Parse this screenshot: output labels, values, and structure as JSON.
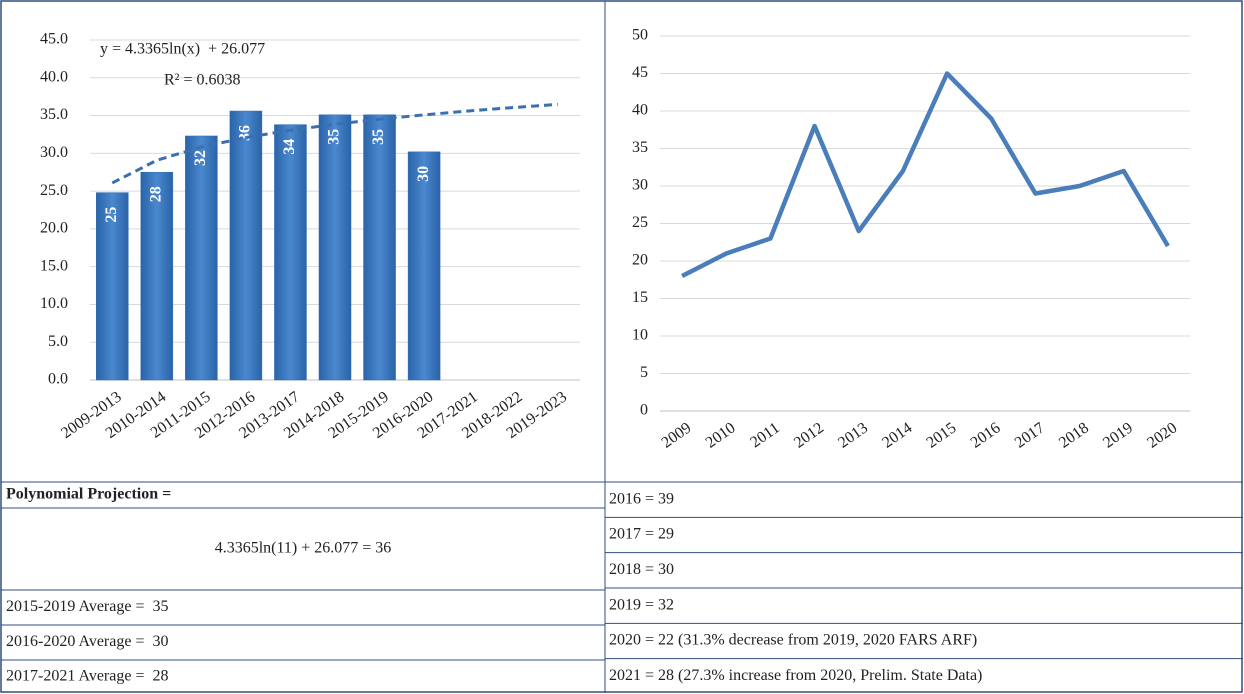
{
  "chart_data": [
    {
      "type": "bar",
      "annotations": [
        "y = 4.3365ln(x)  + 26.077",
        "R² = 0.6038"
      ],
      "categories": [
        "2009-2013",
        "2010-2014",
        "2011-2015",
        "2012-2016",
        "2013-2017",
        "2014-2018",
        "2015-2019",
        "2016-2020",
        "2017-2021",
        "2018-2022",
        "2019-2023"
      ],
      "values": [
        24.8,
        27.5,
        32.3,
        35.6,
        33.8,
        35.1,
        35.1,
        30.2,
        null,
        null,
        null
      ],
      "value_labels": [
        "25",
        "28",
        "32",
        "36",
        "34",
        "35",
        "35",
        "30",
        null,
        null,
        null
      ],
      "color": "#2f6db5",
      "trendline": {
        "values": [
          26.08,
          29.08,
          30.84,
          32.09,
          33.06,
          33.85,
          34.52,
          35.09,
          35.61,
          36.06,
          36.48
        ],
        "color": "#3a6fb0",
        "dashed": true
      },
      "ylim": [
        0,
        45
      ],
      "yticks": [
        {
          "value": 0,
          "label": "0.0"
        },
        {
          "value": 5,
          "label": "5.0"
        },
        {
          "value": 10,
          "label": "10.0"
        },
        {
          "value": 15,
          "label": "15.0"
        },
        {
          "value": 20,
          "label": "20.0"
        },
        {
          "value": 25,
          "label": "25.0"
        },
        {
          "value": 30,
          "label": "30.0"
        },
        {
          "value": 35,
          "label": "35.0"
        },
        {
          "value": 40,
          "label": "40.0"
        },
        {
          "value": 45,
          "label": "45.0"
        }
      ],
      "grid": true
    },
    {
      "type": "line",
      "categories": [
        "2009",
        "2010",
        "2011",
        "2012",
        "2013",
        "2014",
        "2015",
        "2016",
        "2017",
        "2018",
        "2019",
        "2020"
      ],
      "values": [
        18,
        21,
        23,
        38,
        24,
        32,
        45,
        39,
        29,
        30,
        32,
        22
      ],
      "color": "#4a7ebb",
      "ylim": [
        0,
        50
      ],
      "yticks": [
        0,
        5,
        10,
        15,
        20,
        25,
        30,
        35,
        40,
        45,
        50
      ],
      "grid": true
    }
  ],
  "table": {
    "left": [
      "Polynomial Projection =",
      "4.3365ln(11) + 26.077 = 36",
      "2015-2019 Average =  35",
      "2016-2020 Average =  30",
      "2017-2021 Average =  28"
    ],
    "right": [
      "2016 = 39",
      "2017 = 29",
      "2018 = 30",
      "2019 = 32",
      "2020 = 22 (31.3% decrease from 2019, 2020 FARS ARF)",
      "2021 = 28 (27.3% increase from 2020, Prelim. State Data)"
    ]
  }
}
